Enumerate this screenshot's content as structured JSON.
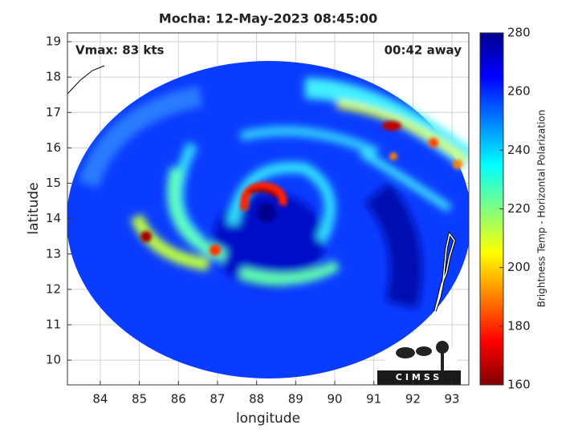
{
  "chart_data": {
    "type": "image",
    "title": "Mocha: 12-May-2023 08:45:00",
    "annotations": [
      "Vmax: 83 kts",
      "00:42 away"
    ],
    "xlabel": "longitude",
    "ylabel": "latitude",
    "xlim": [
      83.16,
      93.43
    ],
    "ylim": [
      9.3,
      19.25
    ],
    "xticks": [
      84,
      85,
      86,
      87,
      88,
      89,
      90,
      91,
      92,
      93
    ],
    "yticks": [
      10,
      11,
      12,
      13,
      14,
      15,
      16,
      17,
      18,
      19
    ],
    "grid": true,
    "colorbar": {
      "label": "Brightness Temp - Horizontal Polarization",
      "lim": [
        160,
        280
      ],
      "ticks": [
        160,
        180,
        200,
        220,
        240,
        260,
        280
      ],
      "colormap": [
        "#800000",
        "#ff0000",
        "#ff8000",
        "#ffff00",
        "#80ff80",
        "#00ffff",
        "#0080ff",
        "#0000ff",
        "#00008f"
      ]
    },
    "logo": "CIMSS"
  }
}
